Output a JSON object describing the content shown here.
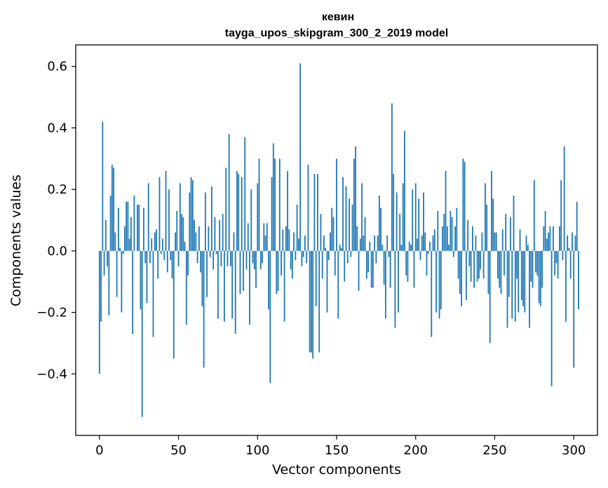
{
  "chart_data": {
    "type": "bar",
    "title": "кевин",
    "subtitle": "tayga_upos_skipgram_300_2_2019 model",
    "xlabel": "Vector components",
    "ylabel": "Components values",
    "xlim": [
      -15,
      315
    ],
    "ylim": [
      -0.6,
      0.67
    ],
    "xticks": [
      0,
      50,
      100,
      150,
      200,
      250,
      300
    ],
    "yticks": [
      -0.4,
      -0.2,
      0.0,
      0.2,
      0.4,
      0.6
    ],
    "xtick_labels": [
      "0",
      "50",
      "100",
      "150",
      "200",
      "250",
      "300"
    ],
    "ytick_labels": [
      "−0.4",
      "−0.2",
      "0.0",
      "0.2",
      "0.4",
      "0.6"
    ],
    "bar_color": "#1f77b4",
    "grid": false,
    "x_start": 0,
    "values": [
      -0.4,
      -0.23,
      0.42,
      -0.08,
      0.1,
      -0.05,
      -0.21,
      0.18,
      0.28,
      0.27,
      0.06,
      -0.15,
      0.14,
      0.01,
      -0.2,
      -0.01,
      0.08,
      0.16,
      0.16,
      0.04,
      0.11,
      -0.27,
      0.18,
      0.0,
      0.15,
      0.15,
      -0.19,
      -0.54,
      0.14,
      -0.04,
      -0.17,
      0.22,
      -0.04,
      0.04,
      -0.28,
      0.06,
      0.07,
      -0.09,
      0.24,
      -0.01,
      0.04,
      -0.03,
      0.26,
      -0.07,
      0.2,
      -0.03,
      -0.09,
      -0.35,
      0.06,
      0.13,
      -0.05,
      0.22,
      0.12,
      0.11,
      0.03,
      -0.24,
      -0.08,
      0.19,
      0.24,
      0.23,
      0.1,
      0.06,
      -0.04,
      0.08,
      -0.07,
      -0.18,
      -0.38,
      0.19,
      -0.15,
      0.08,
      -0.02,
      0.21,
      -0.06,
      0.11,
      -0.01,
      -0.22,
      0.1,
      -0.05,
      0.12,
      -0.23,
      0.27,
      -0.05,
      0.38,
      -0.05,
      -0.22,
      0.06,
      -0.27,
      0.26,
      0.25,
      -0.14,
      0.24,
      -0.13,
      0.37,
      -0.06,
      0.09,
      -0.24,
      0.2,
      -0.04,
      -0.06,
      -0.12,
      0.22,
      0.3,
      -0.06,
      -0.04,
      0.09,
      0.05,
      0.09,
      -0.19,
      -0.43,
      0.24,
      0.35,
      0.3,
      -0.14,
      -0.13,
      0.3,
      -0.08,
      0.07,
      -0.23,
      0.08,
      0.26,
      0.07,
      -0.06,
      -0.09,
      0.06,
      -0.03,
      0.15,
      0.04,
      0.61,
      -0.05,
      -0.02,
      0.05,
      -0.04,
      0.28,
      -0.33,
      -0.33,
      -0.35,
      0.25,
      -0.18,
      0.25,
      -0.33,
      0.12,
      -0.09,
      0.05,
      0.01,
      -0.2,
      -0.03,
      0.06,
      0.14,
      0.11,
      -0.08,
      0.3,
      -0.22,
      0.02,
      0.01,
      0.24,
      -0.1,
      0.21,
      -0.04,
      0.17,
      -0.02,
      0.15,
      0.3,
      0.34,
      0.08,
      -0.13,
      0.04,
      0.22,
      0.05,
      0.11,
      -0.09,
      -0.07,
      0.03,
      -0.12,
      -0.12,
      0.05,
      -0.04,
      0.05,
      0.18,
      0.14,
      0.02,
      -0.11,
      -0.22,
      0.05,
      -0.02,
      -0.12,
      0.48,
      0.25,
      -0.25,
      0.19,
      -0.2,
      0.12,
      0.02,
      0.22,
      0.39,
      -0.08,
      -0.1,
      0.03,
      0.02,
      0.2,
      -0.12,
      0.22,
      0.04,
      0.17,
      -0.03,
      0.05,
      0.19,
      0.06,
      -0.08,
      -0.01,
      0.03,
      -0.28,
      0.05,
      0.07,
      -0.2,
      0.13,
      -0.22,
      -0.19,
      0.08,
      0.12,
      0.26,
      0.08,
      0.02,
      0.13,
      0.11,
      -0.02,
      0.08,
      0.14,
      -0.09,
      -0.14,
      -0.18,
      0.3,
      0.29,
      -0.16,
      0.1,
      -0.05,
      -0.1,
      0.08,
      -0.12,
      0.05,
      -0.1,
      -0.09,
      -0.06,
      0.06,
      -0.09,
      0.22,
      0.15,
      -0.14,
      -0.3,
      0.26,
      0.17,
      0.06,
      0.06,
      -0.09,
      -0.12,
      -0.14,
      0.07,
      -0.08,
      0.12,
      -0.25,
      -0.15,
      0.11,
      -0.22,
      0.18,
      -0.23,
      -0.09,
      -0.2,
      0.07,
      -0.16,
      -0.18,
      -0.2,
      0.05,
      0.02,
      -0.25,
      -0.1,
      -0.12,
      0.23,
      -0.07,
      -0.08,
      -0.17,
      -0.18,
      -0.12,
      0.08,
      0.13,
      0.04,
      0.06,
      0.08,
      -0.44,
      0.08,
      -0.08,
      -0.04,
      -0.09,
      0.08,
      0.23,
      -0.03,
      0.34,
      -0.23,
      0.05,
      0.01,
      -0.09,
      0.06,
      -0.38,
      0.05,
      0.16,
      -0.19
    ]
  }
}
